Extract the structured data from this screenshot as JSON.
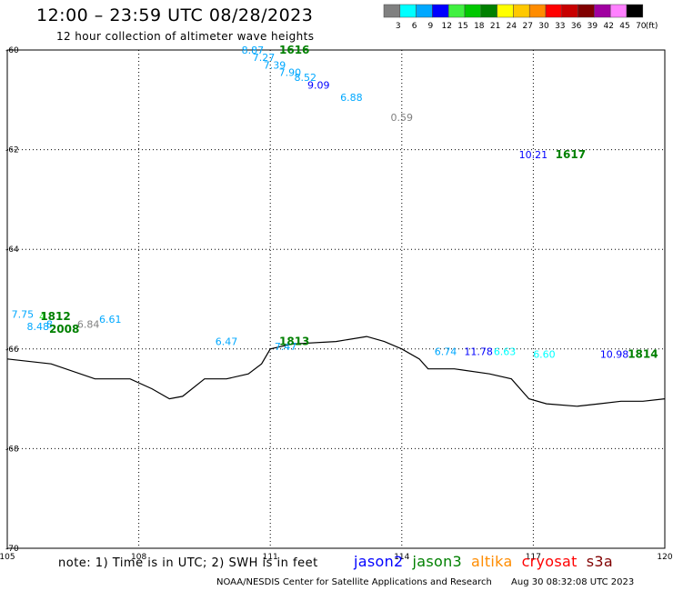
{
  "title": "12:00 – 23:59 UTC 08/28/2023",
  "subtitle": "12 hour collection of altimeter wave heights",
  "legend": {
    "labels": [
      "3",
      "6",
      "9",
      "12",
      "15",
      "18",
      "21",
      "24",
      "27",
      "30",
      "33",
      "36",
      "39",
      "42",
      "45",
      "70"
    ],
    "unit": "(ft)",
    "colors": [
      "#808080",
      "#00ffff",
      "#00a8ff",
      "#0000ff",
      "#40f040",
      "#00c800",
      "#008000",
      "#ffff00",
      "#ffc800",
      "#ff8c00",
      "#ff0000",
      "#c80000",
      "#800000",
      "#a000a0",
      "#ff80ff",
      "#000000"
    ]
  },
  "note": "note: 1) Time is in UTC; 2) SWH is in feet",
  "missions": [
    {
      "name": "jason2",
      "color": "#0000ff"
    },
    {
      "name": "jason3",
      "color": "#008000"
    },
    {
      "name": "altika",
      "color": "#ff8c00"
    },
    {
      "name": "cryosat",
      "color": "#ff0000"
    },
    {
      "name": "s3a",
      "color": "#800000"
    }
  ],
  "credit": "NOAA/NESDIS Center for Satellite Applications and Research",
  "timestamp": "Aug 30 08:32:08 UTC 2023",
  "chart_data": {
    "type": "scatter",
    "x_ticks": [
      "105",
      "108",
      "111",
      "114",
      "117",
      "120"
    ],
    "y_ticks": [
      "-60",
      "-62",
      "-64",
      "-66",
      "-68",
      "-70"
    ],
    "xlim": [
      105,
      120
    ],
    "ylim": [
      -70,
      -60
    ],
    "grid": true,
    "coastline": [
      [
        105,
        -66.2
      ],
      [
        106,
        -66.3
      ],
      [
        107,
        -66.6
      ],
      [
        107.8,
        -66.6
      ],
      [
        108.3,
        -66.8
      ],
      [
        108.7,
        -67.0
      ],
      [
        109.0,
        -66.95
      ],
      [
        109.5,
        -66.6
      ],
      [
        110.0,
        -66.6
      ],
      [
        110.5,
        -66.5
      ],
      [
        110.8,
        -66.3
      ],
      [
        111.0,
        -66.0
      ],
      [
        111.5,
        -65.9
      ],
      [
        112.5,
        -65.85
      ],
      [
        113.2,
        -65.75
      ],
      [
        113.6,
        -65.85
      ],
      [
        114.0,
        -66.0
      ],
      [
        114.4,
        -66.2
      ],
      [
        114.6,
        -66.4
      ],
      [
        115.2,
        -66.4
      ],
      [
        116.0,
        -66.5
      ],
      [
        116.5,
        -66.6
      ],
      [
        116.9,
        -67.0
      ],
      [
        117.3,
        -67.1
      ],
      [
        118.0,
        -67.15
      ],
      [
        118.5,
        -67.1
      ],
      [
        119.0,
        -67.05
      ],
      [
        119.5,
        -67.05
      ],
      [
        120,
        -67.0
      ]
    ],
    "passes": [
      {
        "label": "1616",
        "lon": 111.55,
        "lat": -60.0,
        "color": "#008000"
      },
      {
        "label": "1617",
        "lon": 117.85,
        "lat": -62.1,
        "color": "#008000"
      },
      {
        "label": "1812",
        "lon": 106.1,
        "lat": -65.35,
        "color": "#008000"
      },
      {
        "label": "2008",
        "lon": 106.3,
        "lat": -65.6,
        "color": "#008000"
      },
      {
        "label": "1813",
        "lon": 111.55,
        "lat": -65.85,
        "color": "#008000"
      },
      {
        "label": "1814",
        "lon": 119.5,
        "lat": -66.1,
        "color": "#008000"
      }
    ],
    "observations": [
      {
        "value": "8.87",
        "lon": 110.6,
        "lat": -60.0,
        "color": "#00a8ff"
      },
      {
        "value": "7.27",
        "lon": 110.85,
        "lat": -60.15,
        "color": "#00a8ff"
      },
      {
        "value": "7.39",
        "lon": 111.1,
        "lat": -60.3,
        "color": "#00a8ff"
      },
      {
        "value": "7.90",
        "lon": 111.45,
        "lat": -60.45,
        "color": "#00a8ff"
      },
      {
        "value": "8.52",
        "lon": 111.8,
        "lat": -60.55,
        "color": "#00a8ff"
      },
      {
        "value": "9.09",
        "lon": 112.1,
        "lat": -60.7,
        "color": "#0000ff"
      },
      {
        "value": "6.88",
        "lon": 112.85,
        "lat": -60.95,
        "color": "#00a8ff"
      },
      {
        "value": "0.59",
        "lon": 114.0,
        "lat": -61.35,
        "color": "#808080"
      },
      {
        "value": "10.21",
        "lon": 117.0,
        "lat": -62.1,
        "color": "#0000ff"
      },
      {
        "value": "7.75",
        "lon": 105.35,
        "lat": -65.3,
        "color": "#00a8ff"
      },
      {
        "value": "4",
        "lon": 105.8,
        "lat": -65.35,
        "color": "#40f040"
      },
      {
        "value": "8.48",
        "lon": 105.7,
        "lat": -65.55,
        "color": "#00a8ff"
      },
      {
        "value": "8.",
        "lon": 106.0,
        "lat": -65.5,
        "color": "#00a8ff"
      },
      {
        "value": "6.84",
        "lon": 106.85,
        "lat": -65.5,
        "color": "#808080"
      },
      {
        "value": "6.61",
        "lon": 107.35,
        "lat": -65.4,
        "color": "#00a8ff"
      },
      {
        "value": "6.47",
        "lon": 110.0,
        "lat": -65.85,
        "color": "#00a8ff"
      },
      {
        "value": "7.47",
        "lon": 111.35,
        "lat": -65.95,
        "color": "#00a8ff"
      },
      {
        "value": "6.74",
        "lon": 115.0,
        "lat": -66.05,
        "color": "#00a8ff"
      },
      {
        "value": "11.78",
        "lon": 115.75,
        "lat": -66.05,
        "color": "#0000ff"
      },
      {
        "value": "6.63",
        "lon": 116.35,
        "lat": -66.05,
        "color": "#00ffff"
      },
      {
        "value": "6.60",
        "lon": 117.25,
        "lat": -66.1,
        "color": "#00ffff"
      },
      {
        "value": "10.98",
        "lon": 118.85,
        "lat": -66.1,
        "color": "#0000ff"
      }
    ]
  }
}
